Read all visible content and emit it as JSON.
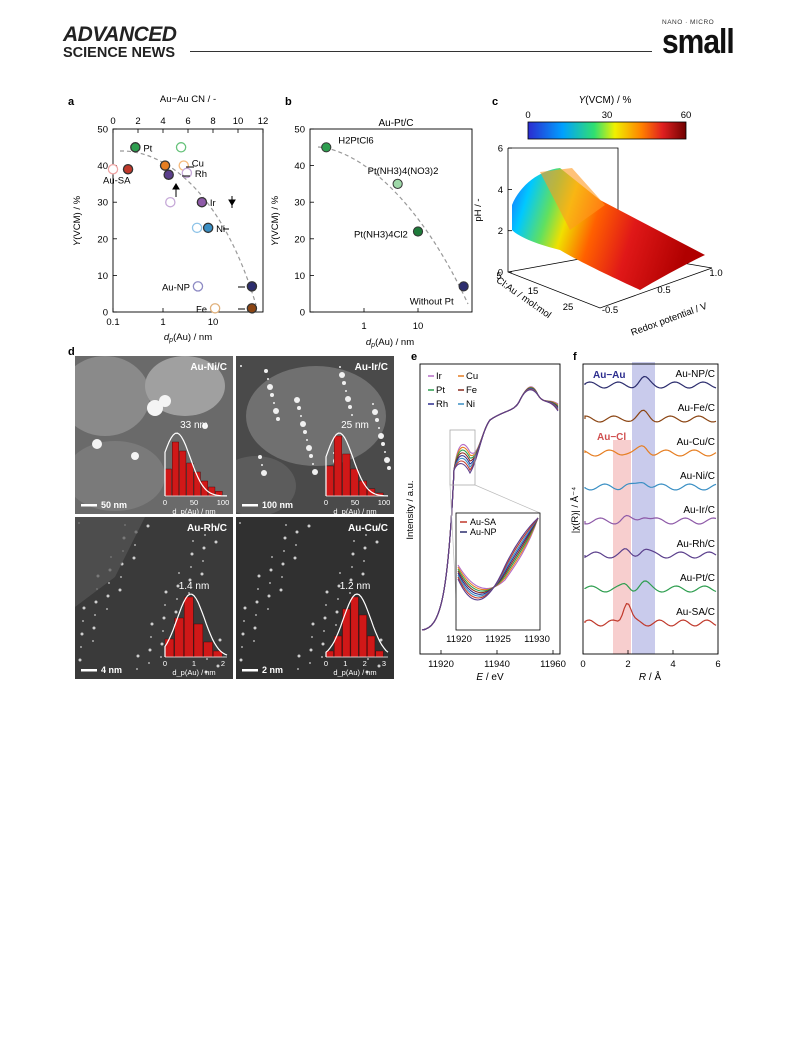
{
  "header": {
    "journal_line1": "ADVANCED",
    "journal_line2": "SCIENCE NEWS",
    "right_small": "NANO · MICRO",
    "right_big": "small"
  },
  "chart_data": [
    {
      "panel": "a",
      "type": "scatter",
      "title": "",
      "xlabel": "d_p(Au) / nm",
      "ylabel": "Y(VCM) / %",
      "top_xlabel": "Au−Au CN / -",
      "x_scale": "log",
      "xlim": [
        0.1,
        100
      ],
      "ylim": [
        0,
        50
      ],
      "top_xlim": [
        0,
        12
      ],
      "x_ticks": [
        "0.1",
        "1",
        "10"
      ],
      "y_ticks": [
        "0",
        "10",
        "20",
        "30",
        "40",
        "50"
      ],
      "top_ticks": [
        "0",
        "2",
        "4",
        "6",
        "8",
        "10",
        "12"
      ],
      "points": [
        {
          "label": "Au-SA",
          "x": 0.1,
          "y": 39,
          "color": "#f0a5a5",
          "filled": false
        },
        {
          "label": "",
          "x": 0.2,
          "y": 39,
          "color": "#c0392b",
          "filled": true
        },
        {
          "label": "Pt",
          "x": 0.28,
          "y": 45,
          "color": "#2e9e4f",
          "filled": true
        },
        {
          "label": "",
          "x": 2.3,
          "y": 45,
          "color": "#66c27a",
          "filled": false
        },
        {
          "label": "",
          "x": 1.1,
          "y": 40,
          "color": "#e67e22",
          "filled": true
        },
        {
          "label": "Cu",
          "x": 2.6,
          "y": 40,
          "color": "#f5b97a",
          "filled": false
        },
        {
          "label": "",
          "x": 1.3,
          "y": 37.5,
          "color": "#5b3f8c",
          "filled": true
        },
        {
          "label": "Rh",
          "x": 3.0,
          "y": 38,
          "color": "#c6a9d8",
          "filled": false
        },
        {
          "label": "",
          "x": 1.4,
          "y": 30,
          "color": "#c6a9d8",
          "filled": false
        },
        {
          "label": "Ir",
          "x": 6.0,
          "y": 30,
          "color": "#8e5aa8",
          "filled": true
        },
        {
          "label": "",
          "x": 4.8,
          "y": 23,
          "color": "#8fc4e8",
          "filled": false
        },
        {
          "label": "Ni",
          "x": 8.0,
          "y": 23,
          "color": "#3a8fc4",
          "filled": true
        },
        {
          "label": "Au-NP",
          "x": 5.0,
          "y": 7,
          "color": "#8e8bc4",
          "filled": false
        },
        {
          "label": "",
          "x": 60,
          "y": 7,
          "color": "#2c2d6e",
          "filled": true
        },
        {
          "label": "Fe",
          "x": 11,
          "y": 1,
          "color": "#e0b07a",
          "filled": false
        },
        {
          "label": "",
          "x": 60,
          "y": 1,
          "color": "#8b4513",
          "filled": true
        }
      ]
    },
    {
      "panel": "b",
      "type": "scatter",
      "title": "Au-Pt/C",
      "xlabel": "d_p(Au) / nm",
      "ylabel": "Y(VCM) / %",
      "x_scale": "log",
      "xlim": [
        0.1,
        100
      ],
      "ylim": [
        0,
        50
      ],
      "x_ticks": [
        "1",
        "10"
      ],
      "y_ticks": [
        "0",
        "10",
        "20",
        "30",
        "40",
        "50"
      ],
      "points": [
        {
          "label": "H2PtCl6",
          "x": 0.2,
          "y": 45,
          "color": "#2e9e4f"
        },
        {
          "label": "Pt(NH3)4(NO3)2",
          "x": 4.2,
          "y": 35,
          "color": "#9ed8a8"
        },
        {
          "label": "Pt(NH3)4Cl2",
          "x": 10,
          "y": 22,
          "color": "#1e7a3a"
        },
        {
          "label": "Without Pt",
          "x": 70,
          "y": 7,
          "color": "#2c2d6e"
        }
      ]
    },
    {
      "panel": "c",
      "type": "surface",
      "title": "Y(VCM) / %",
      "colorbar_ticks": [
        "0",
        "30",
        "60"
      ],
      "zlabel": "pH / -",
      "z_ticks": [
        "0",
        "2",
        "4",
        "6"
      ],
      "xlabel": "Cl:Au / mol:mol",
      "x_ticks": [
        "5",
        "15",
        "25"
      ],
      "ylabel": "Redox potential / V",
      "y_ticks": [
        "-0.5",
        "0.5",
        "1.0"
      ]
    },
    {
      "panel": "d",
      "type": "histogram",
      "images": [
        {
          "label": "Au-Ni/C",
          "size": "33 nm",
          "scale": "50 nm",
          "xlabel": "d_p(Au) / nm",
          "ticks": [
            "0",
            "50",
            "100"
          ],
          "bars": [
            0.45,
            0.9,
            0.75,
            0.55,
            0.4,
            0.25,
            0.15,
            0.08
          ]
        },
        {
          "label": "Au-Ir/C",
          "size": "25 nm",
          "scale": "100 nm",
          "xlabel": "d_p(Au) / nm",
          "ticks": [
            "0",
            "50",
            "100"
          ],
          "bars": [
            0.5,
            1.0,
            0.7,
            0.45,
            0.25,
            0.12,
            0.05
          ]
        },
        {
          "label": "Au-Rh/C",
          "size": "1.4 nm",
          "scale": "4 nm",
          "xlabel": "d_p(Au) / nm",
          "ticks": [
            "0",
            "1",
            "2"
          ],
          "bars": [
            0.3,
            0.65,
            1.0,
            0.55,
            0.25,
            0.1
          ]
        },
        {
          "label": "Au-Cu/C",
          "size": "1.2 nm",
          "scale": "2 nm",
          "xlabel": "d_p(Au) / nm",
          "ticks": [
            "0",
            "1",
            "2",
            "3"
          ],
          "bars": [
            0.1,
            0.35,
            0.8,
            1.0,
            0.7,
            0.35,
            0.1
          ]
        }
      ]
    },
    {
      "panel": "e",
      "type": "line",
      "xlabel": "E / eV",
      "ylabel": "Intensity / a.u.",
      "x_ticks": [
        "11920",
        "11940",
        "11960"
      ],
      "legend": [
        "Ir",
        "Cu",
        "Pt",
        "Fe",
        "Rh",
        "Ni"
      ],
      "legend_colors": [
        "#b56cc6",
        "#e67e22",
        "#2e9e4f",
        "#8b2a1e",
        "#2c2d8e",
        "#3a8fc4"
      ],
      "inset_legend": [
        "Au-SA",
        "Au-NP"
      ],
      "inset_legend_colors": [
        "#c0392b",
        "#2c2d6e"
      ],
      "inset_x_ticks": [
        "11920",
        "11925",
        "11930"
      ]
    },
    {
      "panel": "f",
      "type": "line",
      "xlabel": "R / Å",
      "ylabel": "|χ(R)| / Å⁻⁴",
      "x_ticks": [
        "0",
        "2",
        "4",
        "6"
      ],
      "band_labels": [
        "Au−Au",
        "Au−Cl"
      ],
      "series": [
        {
          "name": "Au-NP/C",
          "color": "#2c2d6e"
        },
        {
          "name": "Au-Fe/C",
          "color": "#8b4513"
        },
        {
          "name": "Au-Cu/C",
          "color": "#e67e22"
        },
        {
          "name": "Au-Ni/C",
          "color": "#3a8fc4"
        },
        {
          "name": "Au-Ir/C",
          "color": "#8e5aa8"
        },
        {
          "name": "Au-Rh/C",
          "color": "#5b3f8c"
        },
        {
          "name": "Au-Pt/C",
          "color": "#2e9e4f"
        },
        {
          "name": "Au-SA/C",
          "color": "#c0392b"
        }
      ]
    }
  ]
}
